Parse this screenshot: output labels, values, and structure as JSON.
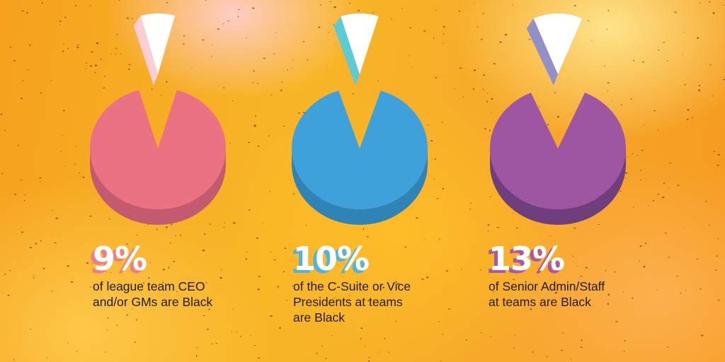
{
  "chart_data": [
    {
      "type": "pie",
      "value": 9,
      "unit": "%",
      "label": "9%",
      "caption_lines": [
        "of league team CEO",
        "and/or GMs are Black"
      ],
      "colors": {
        "body": "#ea7283",
        "side": "#c45a70",
        "slice": "#ffffff",
        "slice_side": "#f9cfd6",
        "shadow": "#ee7d8c"
      }
    },
    {
      "type": "pie",
      "value": 10,
      "unit": "%",
      "label": "10%",
      "caption_lines": [
        "of the C-Suite or Vice",
        "Presidents at teams",
        "are Black"
      ],
      "colors": {
        "body": "#3fa1dc",
        "side": "#2f84b7",
        "slice": "#ffffff",
        "slice_side": "#5ccbd6",
        "shadow": "#4bb6e5"
      }
    },
    {
      "type": "pie",
      "value": 13,
      "unit": "%",
      "label": "13%",
      "caption_lines": [
        "of Senior Admin/Staff",
        "at teams are Black"
      ],
      "colors": {
        "body": "#9e55a2",
        "side": "#6e3f7c",
        "slice": "#ffffff",
        "slice_side": "#9190c9",
        "shadow": "#a45aa8"
      }
    }
  ]
}
